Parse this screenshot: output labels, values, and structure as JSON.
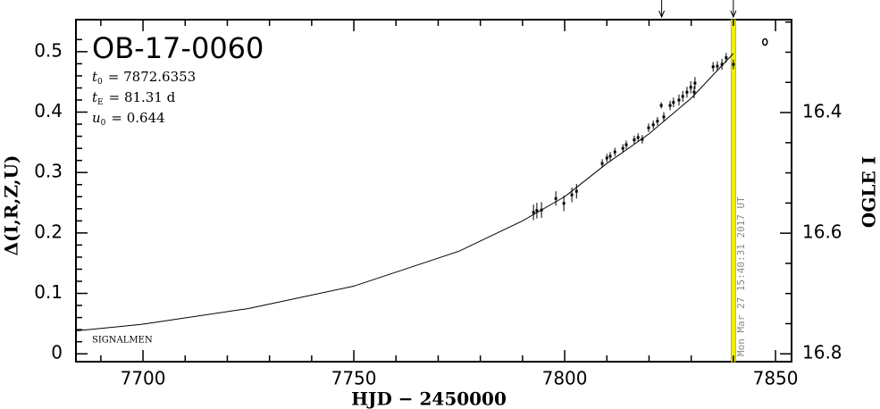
{
  "chart_data": {
    "type": "scatter",
    "title": "OB-17-0060",
    "parameters": [
      {
        "symbol": "t",
        "subscript": "0",
        "text": "= 7872.6353"
      },
      {
        "symbol": "t",
        "subscript": "E",
        "text": "= 81.31 d"
      },
      {
        "symbol": "u",
        "subscript": "0",
        "text": "= 0.644"
      }
    ],
    "note": "SIGNALMEN",
    "x_label": "HJD − 2450000",
    "y_label": "Δ(I,R,Z,U)",
    "y2_label": "OGLE I",
    "xlim": [
      7684.1,
      7853.8
    ],
    "ylim": [
      -0.013,
      0.553
    ],
    "y2lim": [
      16.813,
      16.246
    ],
    "xticks": [
      7700,
      7750,
      7800,
      7850
    ],
    "xminorticks": [
      7690,
      7710,
      7720,
      7730,
      7740,
      7760,
      7770,
      7780,
      7790,
      7810,
      7820,
      7830,
      7840
    ],
    "yticks": [
      0,
      0.1,
      0.2,
      0.3,
      0.4,
      0.5
    ],
    "yminorticks": [
      0.02,
      0.04,
      0.06,
      0.08,
      0.12,
      0.14,
      0.16,
      0.18,
      0.22,
      0.24,
      0.26,
      0.28,
      0.32,
      0.34,
      0.36,
      0.38,
      0.42,
      0.44,
      0.46,
      0.48,
      0.52
    ],
    "y2ticks": [
      16.4,
      16.6,
      16.8
    ],
    "y2minorticks": [
      16.25,
      16.3,
      16.35,
      16.45,
      16.5,
      16.55,
      16.65,
      16.7,
      16.75
    ],
    "marker_line": {
      "x": 7840,
      "label": "Mon Mar 27 15:40:31 2017 UT",
      "color": "#f2f200"
    },
    "arrows_x": [
      7823,
      7840
    ],
    "series": [
      {
        "type": "line",
        "color": "#000000",
        "x": [
          7684.1,
          7700,
          7725,
          7750,
          7775,
          7790,
          7800,
          7810,
          7820,
          7830,
          7840
        ],
        "values": [
          0.038,
          0.049,
          0.075,
          0.112,
          0.17,
          0.22,
          0.26,
          0.315,
          0.364,
          0.423,
          0.497
        ]
      },
      {
        "type": "errorbar",
        "color": "#000000",
        "x": [
          7792.6,
          7793.4,
          7794.5,
          7797.9,
          7799.8,
          7801.7,
          7802.8,
          7808.9,
          7810.0,
          7810.8,
          7811.9,
          7813.8,
          7814.6,
          7816.5,
          7817.4,
          7818.4,
          7819.9,
          7821.0,
          7822.0,
          7822.9,
          7823.5,
          7825.0,
          7825.8,
          7827.1,
          7828.0,
          7829.0,
          7829.9,
          7830.7,
          7830.9,
          7835.2,
          7836.2,
          7837.3,
          7838.3,
          7840.0
        ],
        "values": [
          0.234,
          0.237,
          0.238,
          0.257,
          0.249,
          0.263,
          0.269,
          0.315,
          0.324,
          0.327,
          0.334,
          0.34,
          0.346,
          0.354,
          0.358,
          0.355,
          0.374,
          0.379,
          0.385,
          0.411,
          0.392,
          0.411,
          0.416,
          0.42,
          0.426,
          0.433,
          0.441,
          0.433,
          0.448,
          0.475,
          0.476,
          0.479,
          0.49,
          0.479
        ],
        "errors": [
          0.013,
          0.013,
          0.013,
          0.012,
          0.013,
          0.012,
          0.012,
          0.007,
          0.007,
          0.007,
          0.007,
          0.007,
          0.007,
          0.007,
          0.007,
          0.007,
          0.007,
          0.007,
          0.007,
          0.005,
          0.008,
          0.008,
          0.008,
          0.009,
          0.009,
          0.009,
          0.01,
          0.01,
          0.01,
          0.008,
          0.008,
          0.009,
          0.008,
          0.008
        ]
      },
      {
        "type": "circle",
        "color": "#000000",
        "x": [
          7847.5
        ],
        "values": [
          0.516
        ]
      }
    ]
  }
}
